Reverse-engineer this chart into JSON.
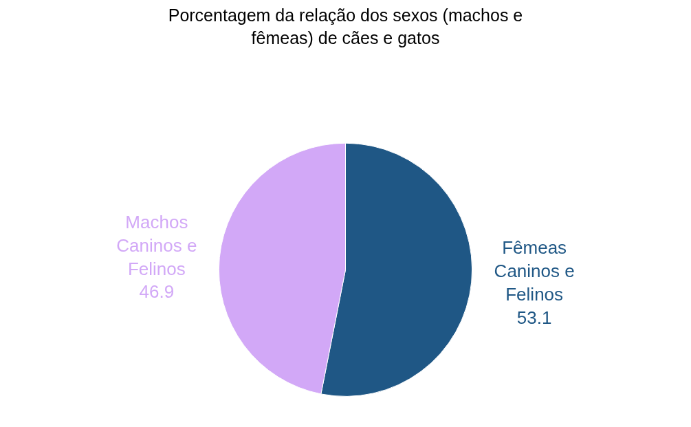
{
  "chart_data": {
    "type": "pie",
    "title": "Porcentagem da relação dos sexos (machos e fêmeas) de cães e gatos",
    "categories": [
      "Fêmeas Caninos e Felinos",
      "Machos Caninos e Felinos"
    ],
    "values": [
      53.1,
      46.9
    ],
    "colors": [
      "#1f5785",
      "#d2a8f7"
    ],
    "data_labels": true,
    "legend": false
  }
}
